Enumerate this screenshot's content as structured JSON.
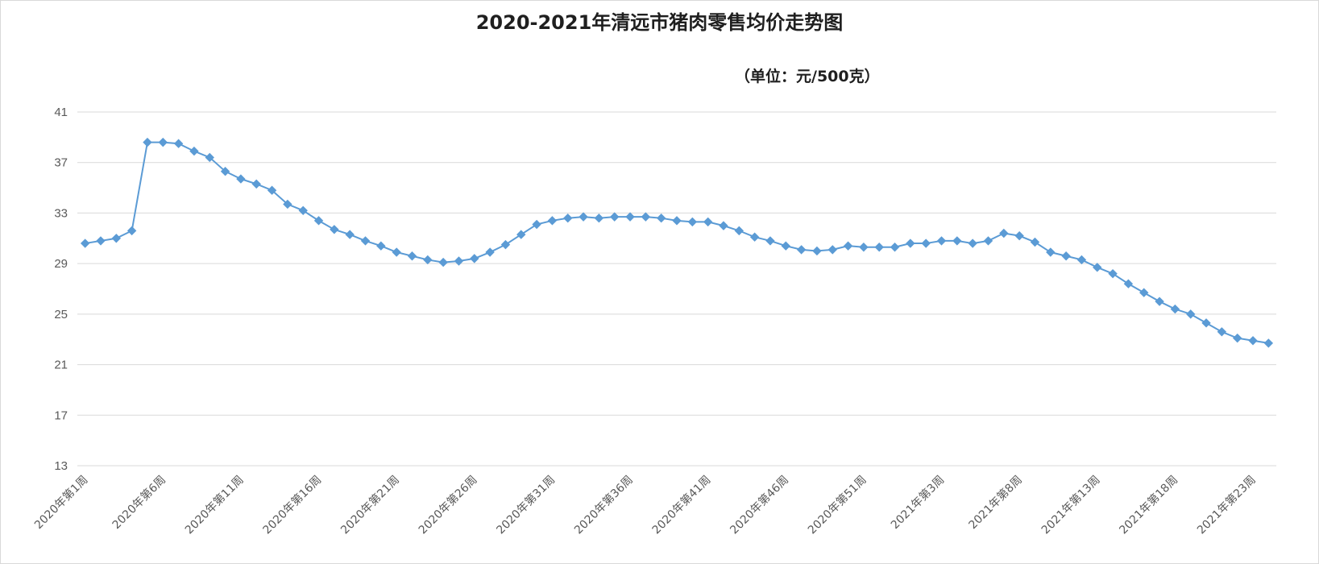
{
  "chart_data": {
    "type": "line",
    "title": "2020-2021年清远市猪肉零售均价走势图",
    "unit_label": "（单位：元/500克）",
    "ylim": [
      13,
      41
    ],
    "yticks": [
      13,
      17,
      21,
      25,
      29,
      33,
      37,
      41
    ],
    "grid": true,
    "legend": "none",
    "line_color": "#5b9bd5",
    "x": [
      "2020年第1周",
      "2020年第2周",
      "2020年第3周",
      "2020年第4周",
      "2020年第5周",
      "2020年第6周",
      "2020年第7周",
      "2020年第8周",
      "2020年第9周",
      "2020年第10周",
      "2020年第11周",
      "2020年第12周",
      "2020年第13周",
      "2020年第14周",
      "2020年第15周",
      "2020年第16周",
      "2020年第17周",
      "2020年第18周",
      "2020年第19周",
      "2020年第20周",
      "2020年第21周",
      "2020年第22周",
      "2020年第23周",
      "2020年第24周",
      "2020年第25周",
      "2020年第26周",
      "2020年第27周",
      "2020年第28周",
      "2020年第29周",
      "2020年第30周",
      "2020年第31周",
      "2020年第32周",
      "2020年第33周",
      "2020年第34周",
      "2020年第35周",
      "2020年第36周",
      "2020年第37周",
      "2020年第38周",
      "2020年第39周",
      "2020年第40周",
      "2020年第41周",
      "2020年第42周",
      "2020年第43周",
      "2020年第44周",
      "2020年第45周",
      "2020年第46周",
      "2020年第47周",
      "2020年第48周",
      "2020年第49周",
      "2020年第50周",
      "2020年第51周",
      "2020年第52周",
      "2020年第53周",
      "2021年第1周",
      "2021年第2周",
      "2021年第3周",
      "2021年第4周",
      "2021年第5周",
      "2021年第6周",
      "2021年第7周",
      "2021年第8周",
      "2021年第9周",
      "2021年第10周",
      "2021年第11周",
      "2021年第12周",
      "2021年第13周",
      "2021年第14周",
      "2021年第15周",
      "2021年第16周",
      "2021年第17周",
      "2021年第18周",
      "2021年第19周",
      "2021年第20周",
      "2021年第21周",
      "2021年第22周",
      "2021年第23周",
      "2021年第24周"
    ],
    "x_tick_labels": [
      "2020年第1周",
      "2020年第6周",
      "2020年第11周",
      "2020年第16周",
      "2020年第21周",
      "2020年第26周",
      "2020年第31周",
      "2020年第36周",
      "2020年第41周",
      "2020年第46周",
      "2020年第51周",
      "2021年第3周",
      "2021年第8周",
      "2021年第13周",
      "2021年第18周",
      "2021年第23周"
    ],
    "series": [
      {
        "values": [
          30.6,
          30.8,
          31.0,
          31.6,
          38.6,
          38.6,
          38.5,
          37.9,
          37.4,
          36.3,
          35.7,
          35.3,
          34.8,
          33.7,
          33.2,
          32.4,
          31.7,
          31.3,
          30.8,
          30.4,
          29.9,
          29.6,
          29.3,
          29.1,
          29.2,
          29.4,
          29.9,
          30.5,
          31.3,
          32.1,
          32.4,
          32.6,
          32.7,
          32.6,
          32.7,
          32.7,
          32.7,
          32.6,
          32.4,
          32.3,
          32.3,
          32.0,
          31.6,
          31.1,
          30.8,
          30.4,
          30.1,
          30.0,
          30.1,
          30.4,
          30.3,
          30.3,
          30.3,
          30.6,
          30.6,
          30.8,
          30.8,
          30.6,
          30.8,
          31.4,
          31.2,
          30.7,
          29.9,
          29.6,
          29.3,
          28.7,
          28.2,
          27.4,
          26.7,
          26.0,
          25.4,
          25.0,
          24.3,
          23.6,
          23.1,
          22.9,
          22.7
        ]
      }
    ]
  }
}
